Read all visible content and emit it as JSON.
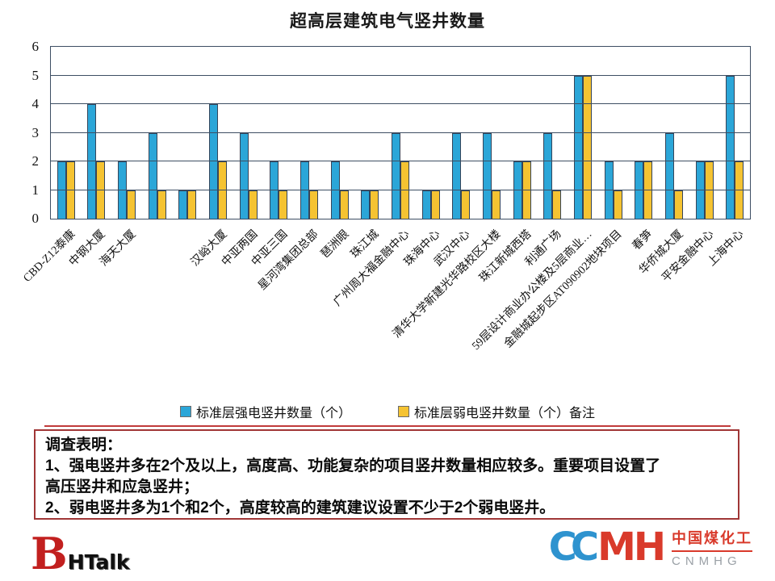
{
  "title": "超高层建筑电气竖井数量",
  "chart_data": {
    "type": "bar",
    "categories": [
      "CBD-Z12泰康",
      "中钢大厦",
      "海天大厦",
      "",
      "",
      "汉峪大厦",
      "中亚两国",
      "中亚三国",
      "星河湾集团总部",
      "琶洲眼",
      "珠江城",
      "广州周大福金融中心",
      "珠海中心",
      "武汉中心",
      "清华大学新建光华路校区大楼",
      "珠江新城西塔",
      "利通广场",
      "59层设计商业办公楼及5层商业…",
      "金融城起步区AT090902地块项目",
      "春笋",
      "华侨城大厦",
      "平安金融中心",
      "上海中心"
    ],
    "series": [
      {
        "name": "标准层强电竖井数量（个）",
        "color": "#2ba6d8",
        "values": [
          2,
          4,
          2,
          3,
          1,
          4,
          3,
          2,
          2,
          2,
          1,
          3,
          1,
          3,
          3,
          2,
          3,
          5,
          2,
          2,
          3,
          2,
          5
        ]
      },
      {
        "name": "标准层弱电竖井数量（个）备注",
        "color": "#f5c332",
        "values": [
          2,
          2,
          1,
          1,
          1,
          2,
          1,
          1,
          1,
          1,
          1,
          2,
          1,
          1,
          1,
          2,
          1,
          5,
          1,
          2,
          1,
          2,
          2
        ]
      }
    ],
    "title": "超高层建筑电气竖井数量",
    "xlabel": "",
    "ylabel": "",
    "ylim": [
      0,
      6
    ],
    "yticks": [
      0,
      1,
      2,
      3,
      4,
      5,
      6
    ],
    "grid": true,
    "legend_position": "bottom"
  },
  "note": {
    "lines": [
      "调查表明：",
      "1、强电竖井多在2个及以上，高度高、功能复杂的项目竖井数量相应较多。重要项目设置了",
      "高压竖井和应急竖井；",
      "2、弱电竖井多为1个和2个，高度较高的建筑建议设置不少于2个弱电竖井。"
    ]
  },
  "footer": {
    "left_logo": {
      "b": "B",
      "text": "HTalk"
    },
    "right_logo": {
      "mark_cc": "CC",
      "mark_mh": "MH",
      "cn": "中国煤化工",
      "en": "CNMHG"
    }
  }
}
